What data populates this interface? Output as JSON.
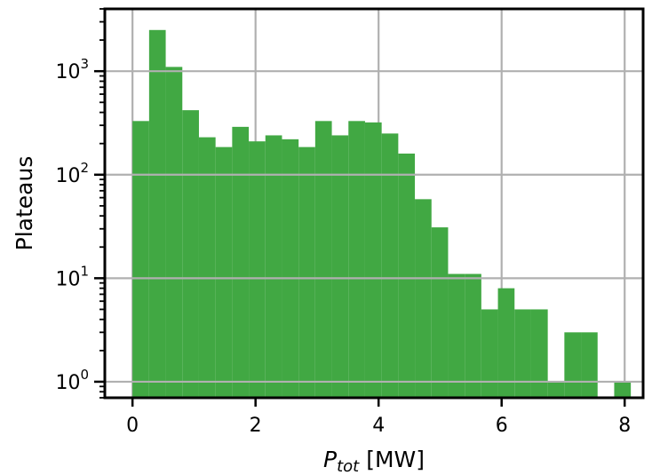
{
  "chart_data": {
    "type": "bar",
    "title": "",
    "xlabel": "P",
    "xlabel_subscript": "tot",
    "xlabel_unit": "[MW]",
    "ylabel": "Plateaus",
    "y_scale": "log",
    "xlim": [
      -0.45,
      8.3
    ],
    "ylim": [
      0.7,
      4000
    ],
    "grid": true,
    "bar_color": "#41a843",
    "x_ticks": [
      0,
      2,
      4,
      6,
      8
    ],
    "y_ticks": [
      {
        "value": 1,
        "base": "10",
        "exp": "0"
      },
      {
        "value": 10,
        "base": "10",
        "exp": "1"
      },
      {
        "value": 100,
        "base": "10",
        "exp": "2"
      },
      {
        "value": 1000,
        "base": "10",
        "exp": "3"
      }
    ],
    "bins": [
      {
        "x0": 0.0,
        "x1": 0.27,
        "count": 330
      },
      {
        "x0": 0.27,
        "x1": 0.54,
        "count": 2500
      },
      {
        "x0": 0.54,
        "x1": 0.81,
        "count": 1100
      },
      {
        "x0": 0.81,
        "x1": 1.08,
        "count": 420
      },
      {
        "x0": 1.08,
        "x1": 1.35,
        "count": 230
      },
      {
        "x0": 1.35,
        "x1": 1.62,
        "count": 185
      },
      {
        "x0": 1.62,
        "x1": 1.89,
        "count": 290
      },
      {
        "x0": 1.89,
        "x1": 2.16,
        "count": 210
      },
      {
        "x0": 2.16,
        "x1": 2.43,
        "count": 240
      },
      {
        "x0": 2.43,
        "x1": 2.7,
        "count": 220
      },
      {
        "x0": 2.7,
        "x1": 2.97,
        "count": 185
      },
      {
        "x0": 2.97,
        "x1": 3.24,
        "count": 330
      },
      {
        "x0": 3.24,
        "x1": 3.51,
        "count": 240
      },
      {
        "x0": 3.51,
        "x1": 3.78,
        "count": 330
      },
      {
        "x0": 3.78,
        "x1": 4.05,
        "count": 320
      },
      {
        "x0": 4.05,
        "x1": 4.32,
        "count": 250
      },
      {
        "x0": 4.32,
        "x1": 4.59,
        "count": 160
      },
      {
        "x0": 4.59,
        "x1": 4.86,
        "count": 58
      },
      {
        "x0": 4.86,
        "x1": 5.13,
        "count": 31
      },
      {
        "x0": 5.13,
        "x1": 5.4,
        "count": 11
      },
      {
        "x0": 5.4,
        "x1": 5.67,
        "count": 11
      },
      {
        "x0": 5.67,
        "x1": 5.94,
        "count": 5
      },
      {
        "x0": 5.94,
        "x1": 6.21,
        "count": 8
      },
      {
        "x0": 6.21,
        "x1": 6.48,
        "count": 5
      },
      {
        "x0": 6.48,
        "x1": 6.75,
        "count": 5
      },
      {
        "x0": 6.75,
        "x1": 7.02,
        "count": 1
      },
      {
        "x0": 7.02,
        "x1": 7.29,
        "count": 3
      },
      {
        "x0": 7.29,
        "x1": 7.56,
        "count": 3
      },
      {
        "x0": 7.56,
        "x1": 7.83,
        "count": 0
      },
      {
        "x0": 7.83,
        "x1": 8.1,
        "count": 1
      }
    ]
  }
}
